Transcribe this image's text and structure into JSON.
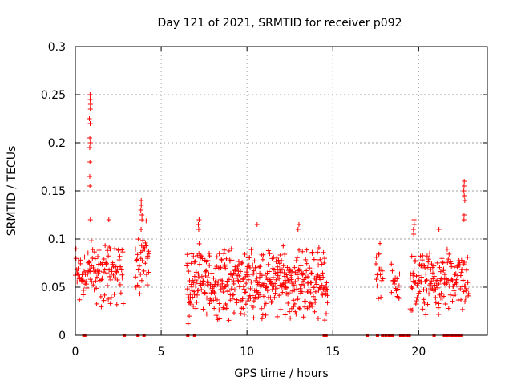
{
  "chart_data": {
    "type": "scatter",
    "title": "Day 121 of 2021, SRMTID for receiver p092",
    "xlabel": "GPS time / hours",
    "ylabel": "SRMTID / TECUs",
    "xlim": [
      0,
      24
    ],
    "ylim": [
      0,
      0.3
    ],
    "x_ticks": [
      0,
      5,
      10,
      15,
      20
    ],
    "x_tick_labels": [
      "0",
      "5",
      "10",
      "15",
      "20"
    ],
    "y_ticks": [
      0,
      0.05,
      0.1,
      0.15,
      0.2,
      0.25,
      0.3
    ],
    "y_tick_labels": [
      "0",
      "0.05",
      "0.1",
      "0.15",
      "0.2",
      "0.25",
      "0.3"
    ],
    "grid": true,
    "marker": "+",
    "color": "#ff0000",
    "series": [
      {
        "name": "p092",
        "segments": [
          {
            "x_start": 0.0,
            "x_end": 2.8,
            "points": 120,
            "y_base": 0.065,
            "y_spread": 0.035
          },
          {
            "x_start": 3.5,
            "x_end": 4.3,
            "points": 35,
            "y_base": 0.08,
            "y_spread": 0.035
          },
          {
            "x_start": 6.5,
            "x_end": 14.7,
            "points": 480,
            "y_base": 0.055,
            "y_spread": 0.035
          },
          {
            "x_start": 17.5,
            "x_end": 17.9,
            "points": 18,
            "y_base": 0.065,
            "y_spread": 0.03
          },
          {
            "x_start": 18.4,
            "x_end": 18.9,
            "points": 18,
            "y_base": 0.055,
            "y_spread": 0.02
          },
          {
            "x_start": 19.5,
            "x_end": 22.9,
            "points": 170,
            "y_base": 0.055,
            "y_spread": 0.03
          }
        ],
        "peaks": [
          {
            "x": 0.85,
            "y": [
              0.12,
              0.155,
              0.165,
              0.18,
              0.195,
              0.2,
              0.205,
              0.22,
              0.225,
              0.235,
              0.24,
              0.245,
              0.25
            ]
          },
          {
            "x": 1.95,
            "y": [
              0.12
            ]
          },
          {
            "x": 3.85,
            "y": [
              0.11,
              0.12,
              0.125,
              0.13,
              0.135,
              0.14
            ]
          },
          {
            "x": 7.2,
            "y": [
              0.11,
              0.115,
              0.12
            ]
          },
          {
            "x": 10.6,
            "y": [
              0.115
            ]
          },
          {
            "x": 13.0,
            "y": [
              0.11,
              0.115
            ]
          },
          {
            "x": 19.7,
            "y": [
              0.105,
              0.11,
              0.115,
              0.12
            ]
          },
          {
            "x": 21.2,
            "y": [
              0.11
            ]
          },
          {
            "x": 22.65,
            "y": [
              0.12,
              0.125,
              0.14,
              0.145,
              0.15,
              0.155,
              0.16
            ]
          },
          {
            "x": 6.55,
            "y": [
              0.012
            ]
          }
        ],
        "zero_x": [
          0.5,
          0.55,
          2.85,
          3.65,
          4.0,
          6.55,
          6.95,
          14.5,
          14.6,
          17.0,
          17.6,
          17.9,
          18.1,
          18.3,
          18.45,
          18.95,
          19.1,
          19.3,
          19.45,
          20.9,
          21.5,
          21.7,
          21.9,
          22.0,
          22.15,
          22.3,
          22.45
        ]
      }
    ]
  }
}
